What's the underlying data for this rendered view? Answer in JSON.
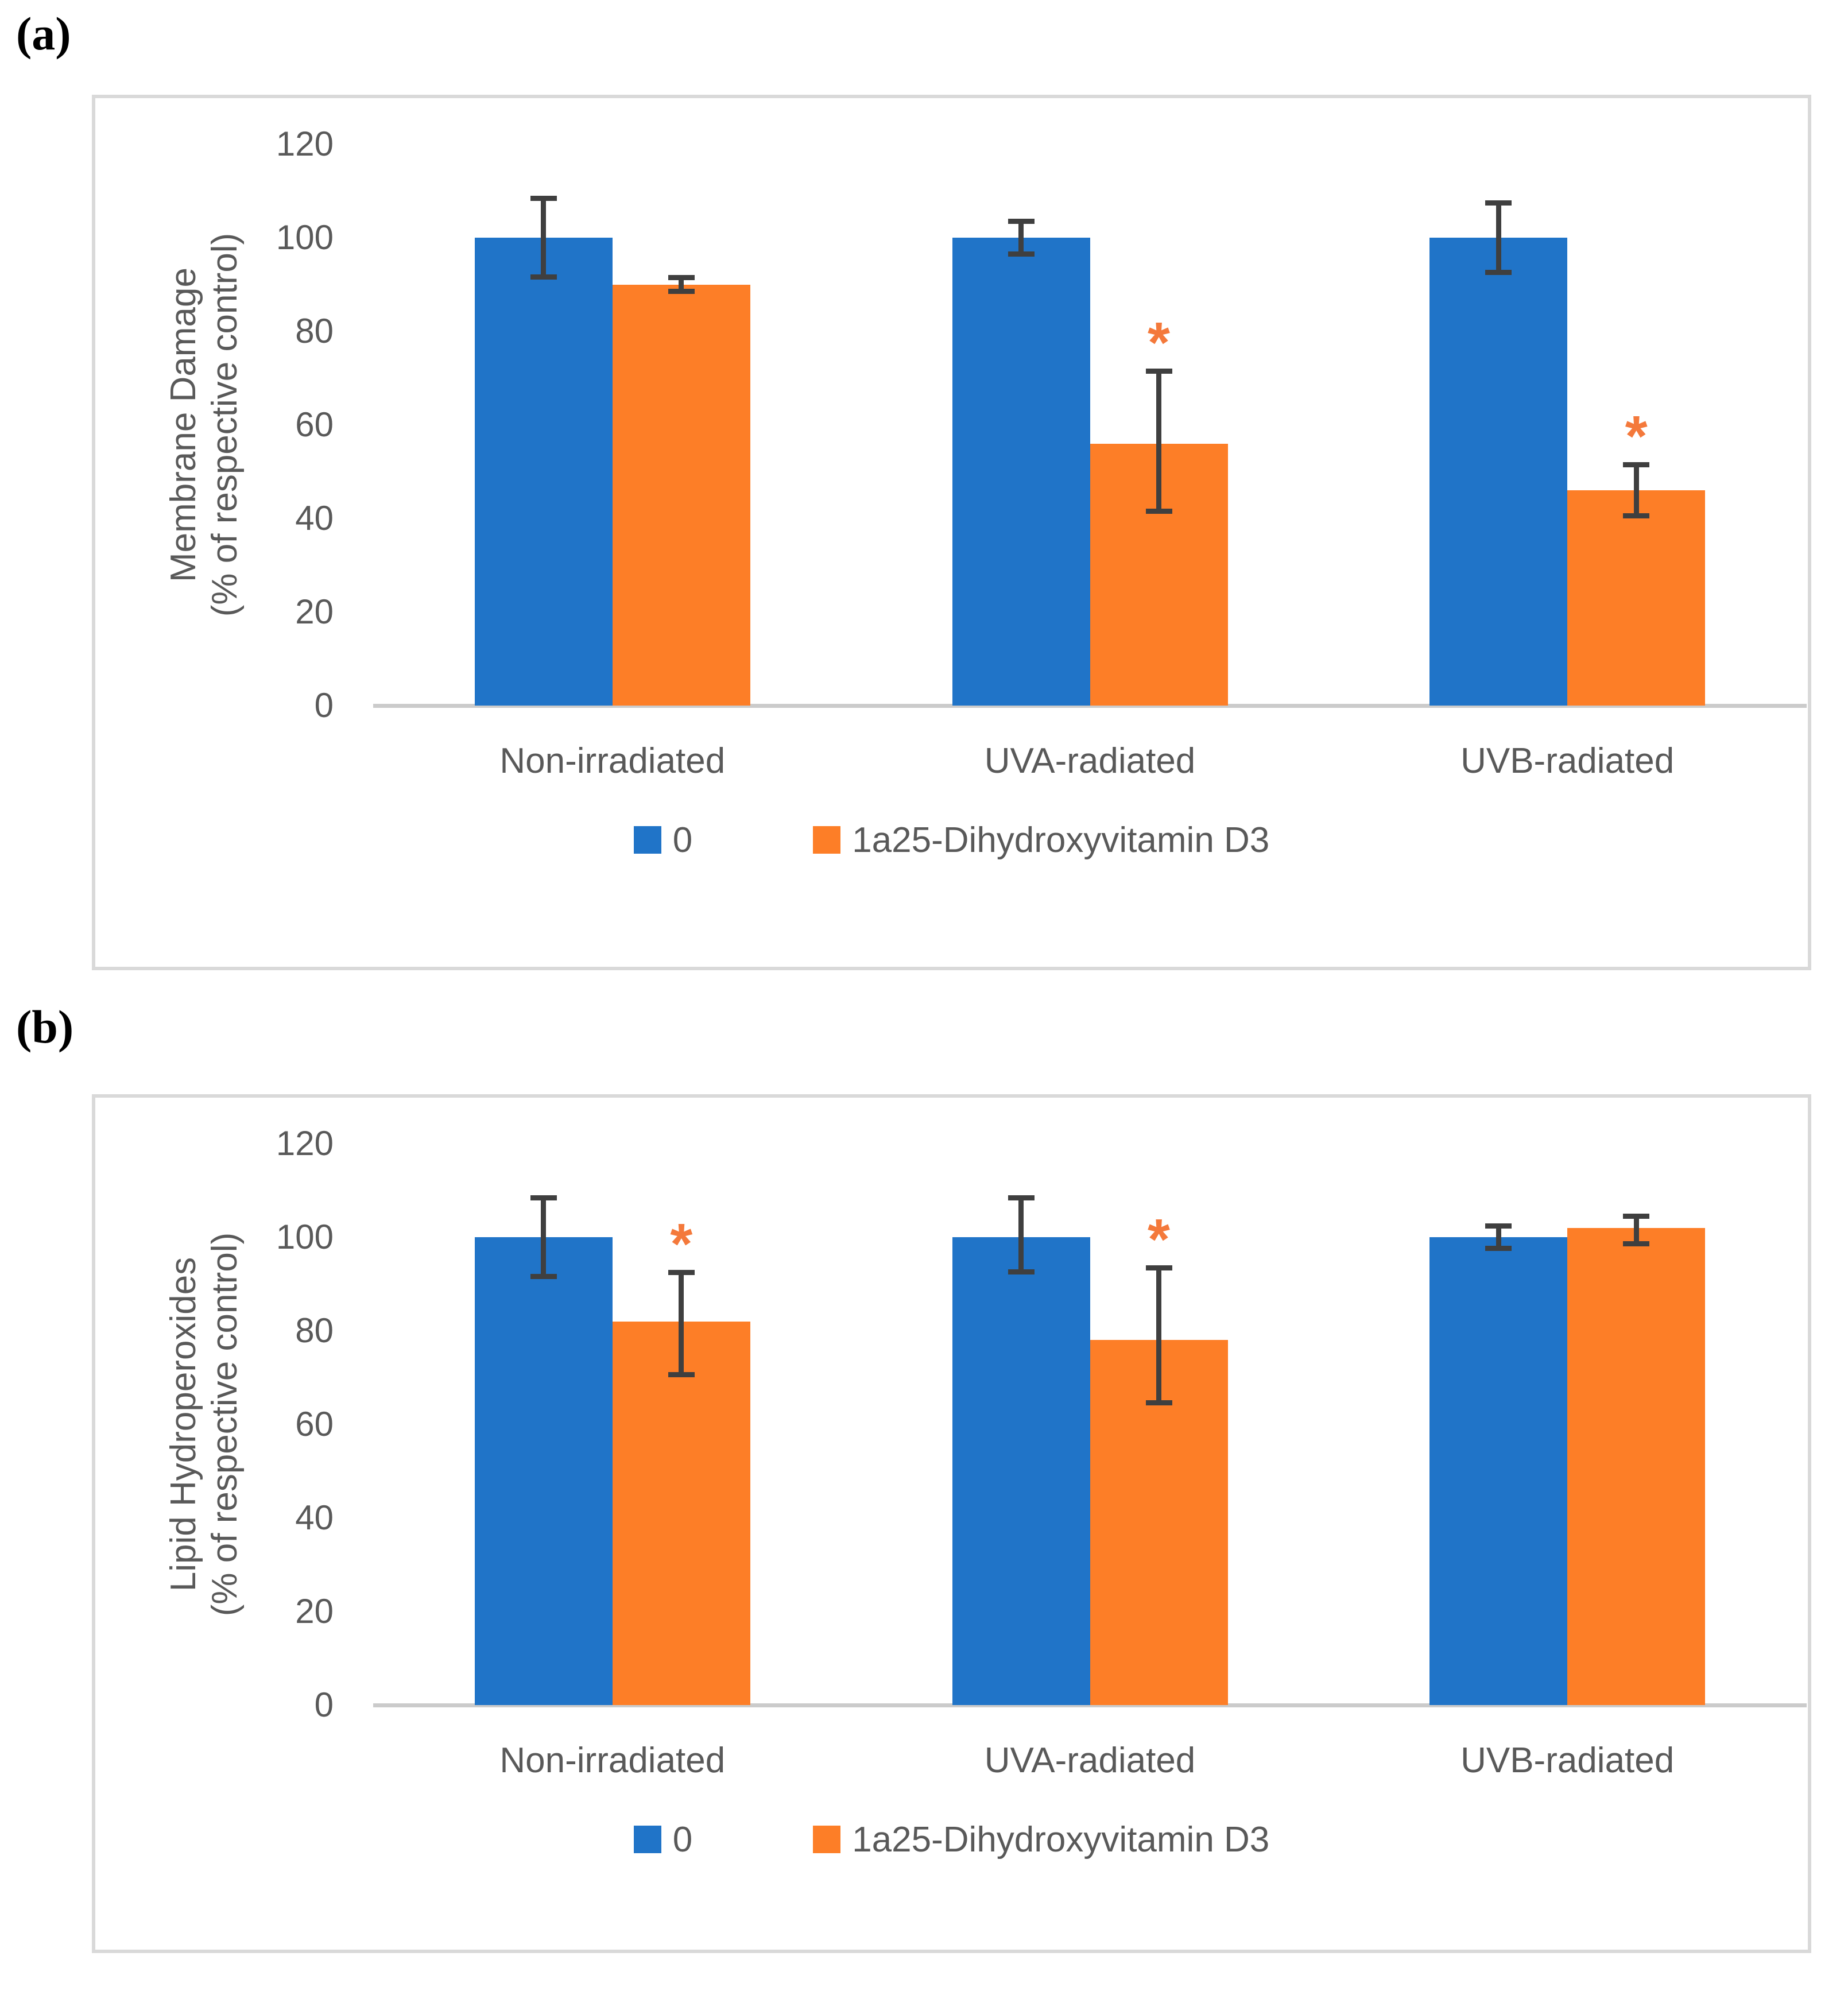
{
  "colors": {
    "series_blue": "#2074C8",
    "series_orange": "#FD7E27",
    "error_bar": "#3F3F3F",
    "axis_line": "#CBCBCB",
    "text": "#595959",
    "panel_border": "#D9D9D9",
    "significance_marker": "#F4793B"
  },
  "significance_symbol": "*",
  "chart_data": [
    {
      "type": "bar",
      "panel_label": "(a)",
      "title_lines": [
        "Membrane Damage",
        "(% of respective control)"
      ],
      "ylabel": "Membrane Damage (% of respective control)",
      "categories": [
        "Non-irradiated",
        "UVA-radiated",
        "UVB-radiated"
      ],
      "series": [
        {
          "name": "0",
          "color": "#2074C8",
          "values": [
            100,
            100,
            100
          ],
          "err_low": [
            91,
            96,
            92
          ],
          "err_high": [
            109,
            104,
            108
          ],
          "significant": [
            false,
            false,
            false
          ]
        },
        {
          "name": "1a25-Dihydroxyvitamin D3",
          "color": "#FD7E27",
          "values": [
            90,
            56,
            46
          ],
          "err_low": [
            88,
            41,
            40
          ],
          "err_high": [
            92,
            72,
            52
          ],
          "significant": [
            false,
            true,
            true
          ]
        }
      ],
      "yticks": [
        0,
        20,
        40,
        60,
        80,
        100,
        120
      ],
      "ylim": [
        0,
        120
      ],
      "grid": false,
      "legend_position": "bottom"
    },
    {
      "type": "bar",
      "panel_label": "(b)",
      "title_lines": [
        "Lipid Hydroperoxides",
        "(% of respective control)"
      ],
      "ylabel": "Lipid Hydroperoxides (% of respective control)",
      "categories": [
        "Non-irradiated",
        "UVA-radiated",
        "UVB-radiated"
      ],
      "series": [
        {
          "name": "0",
          "color": "#2074C8",
          "values": [
            100,
            100,
            100
          ],
          "err_low": [
            91,
            92,
            97
          ],
          "err_high": [
            109,
            109,
            103
          ],
          "significant": [
            false,
            false,
            false
          ]
        },
        {
          "name": "1a25-Dihydroxyvitamin D3",
          "color": "#FD7E27",
          "values": [
            82,
            78,
            102
          ],
          "err_low": [
            70,
            64,
            98
          ],
          "err_high": [
            93,
            94,
            105
          ],
          "significant": [
            true,
            true,
            false
          ]
        }
      ],
      "yticks": [
        0,
        20,
        40,
        60,
        80,
        100,
        120
      ],
      "ylim": [
        0,
        120
      ],
      "grid": false,
      "legend_position": "bottom"
    }
  ]
}
